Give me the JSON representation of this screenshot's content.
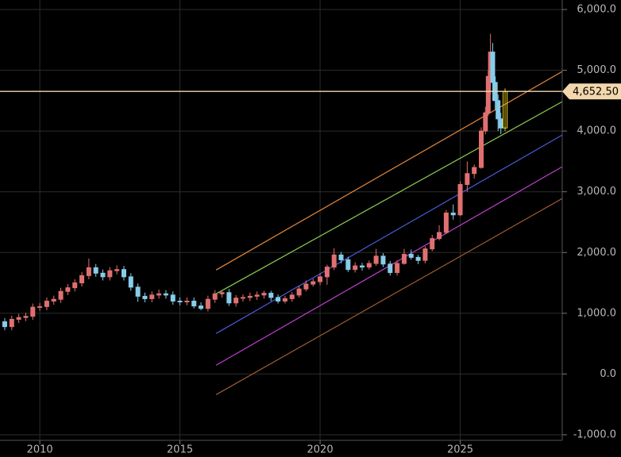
{
  "chart_data": {
    "type": "candlestick",
    "x": [
      2008.75,
      2009,
      2009.25,
      2009.5,
      2009.75,
      2010,
      2010.25,
      2010.5,
      2010.75,
      2011,
      2011.25,
      2011.5,
      2011.75,
      2012,
      2012.25,
      2012.5,
      2012.75,
      2013,
      2013.25,
      2013.5,
      2013.75,
      2014,
      2014.25,
      2014.5,
      2014.75,
      2015,
      2015.25,
      2015.5,
      2015.75,
      2016,
      2016.25,
      2016.5,
      2016.75,
      2017,
      2017.25,
      2017.5,
      2017.75,
      2018,
      2018.25,
      2018.5,
      2018.75,
      2019,
      2019.25,
      2019.5,
      2019.75,
      2020,
      2020.25,
      2020.5,
      2020.75,
      2021,
      2021.25,
      2021.5,
      2021.75,
      2022,
      2022.25,
      2022.5,
      2022.75,
      2023,
      2023.25,
      2023.5,
      2023.75,
      2024,
      2024.25,
      2024.5,
      2024.75,
      2025,
      2025.25,
      2025.5,
      2025.75,
      2025.9,
      2026,
      2026.08,
      2026.16,
      2026.25,
      2026.35,
      2026.45,
      2026.6
    ],
    "open": [
      860,
      780,
      900,
      930,
      950,
      1100,
      1110,
      1200,
      1230,
      1360,
      1420,
      1500,
      1620,
      1750,
      1660,
      1600,
      1700,
      1720,
      1600,
      1430,
      1280,
      1240,
      1300,
      1320,
      1300,
      1200,
      1190,
      1200,
      1120,
      1080,
      1230,
      1320,
      1340,
      1170,
      1250,
      1260,
      1280,
      1300,
      1330,
      1260,
      1200,
      1240,
      1300,
      1400,
      1480,
      1520,
      1600,
      1760,
      1960,
      1880,
      1720,
      1780,
      1760,
      1820,
      1940,
      1810,
      1670,
      1820,
      1970,
      1920,
      1870,
      2060,
      2230,
      2330,
      2650,
      2620,
      3120,
      3300,
      3400,
      4000,
      4300,
      4900,
      5300,
      4800,
      4500,
      4200,
      4050
    ],
    "high": [
      920,
      960,
      990,
      1010,
      1160,
      1170,
      1260,
      1290,
      1420,
      1480,
      1560,
      1680,
      1900,
      1810,
      1720,
      1760,
      1790,
      1780,
      1660,
      1490,
      1340,
      1360,
      1390,
      1380,
      1360,
      1260,
      1260,
      1260,
      1180,
      1290,
      1380,
      1380,
      1400,
      1300,
      1310,
      1340,
      1360,
      1370,
      1370,
      1310,
      1290,
      1350,
      1450,
      1540,
      1570,
      1660,
      1800,
      2070,
      2010,
      1930,
      1840,
      1830,
      1870,
      2060,
      1990,
      1860,
      1870,
      2060,
      2050,
      1960,
      2100,
      2290,
      2450,
      2700,
      2790,
      3170,
      3500,
      3450,
      4060,
      4400,
      5000,
      5600,
      5450,
      4900,
      4600,
      4300,
      4700
    ],
    "low": [
      720,
      720,
      840,
      870,
      890,
      1040,
      1050,
      1140,
      1170,
      1300,
      1360,
      1440,
      1560,
      1600,
      1540,
      1540,
      1640,
      1540,
      1370,
      1190,
      1180,
      1180,
      1240,
      1240,
      1140,
      1130,
      1130,
      1080,
      1050,
      1030,
      1170,
      1260,
      1120,
      1110,
      1190,
      1200,
      1220,
      1240,
      1200,
      1160,
      1160,
      1190,
      1260,
      1360,
      1440,
      1460,
      1470,
      1710,
      1820,
      1680,
      1670,
      1700,
      1720,
      1780,
      1760,
      1620,
      1620,
      1800,
      1880,
      1810,
      1820,
      2020,
      2200,
      2300,
      2540,
      2600,
      3000,
      3220,
      3380,
      3950,
      4250,
      4600,
      4500,
      4350,
      4000,
      3950,
      4000
    ],
    "close": [
      780,
      900,
      930,
      950,
      1100,
      1110,
      1200,
      1230,
      1360,
      1420,
      1500,
      1620,
      1750,
      1660,
      1600,
      1700,
      1720,
      1600,
      1430,
      1280,
      1240,
      1300,
      1320,
      1300,
      1200,
      1190,
      1200,
      1120,
      1080,
      1230,
      1320,
      1340,
      1170,
      1250,
      1260,
      1280,
      1300,
      1330,
      1260,
      1200,
      1240,
      1300,
      1400,
      1480,
      1520,
      1600,
      1760,
      1960,
      1880,
      1720,
      1780,
      1760,
      1820,
      1940,
      1810,
      1670,
      1820,
      1970,
      1920,
      1870,
      2060,
      2230,
      2330,
      2650,
      2620,
      3120,
      3300,
      3400,
      4000,
      4300,
      4900,
      5300,
      4800,
      4500,
      4200,
      4050,
      4650
    ],
    "up_color": "#e07070",
    "down_color": "#87cdea",
    "last_color": "#f0d020",
    "xlim": [
      2008.58,
      2028.64
    ],
    "ylim": [
      -1092,
      6157
    ],
    "xticks": [
      2010,
      2015,
      2020,
      2025
    ],
    "yticks": [
      {
        "value": 6000,
        "label": "6,000.0"
      },
      {
        "value": 5000,
        "label": "5,000.0"
      },
      {
        "value": 4000,
        "label": "4,000.0"
      },
      {
        "value": 3000,
        "label": "3,000.0"
      },
      {
        "value": 2000,
        "label": "2,000.0"
      },
      {
        "value": 1000,
        "label": "1,000.0"
      },
      {
        "value": 0,
        "label": "0.0"
      },
      {
        "value": -1000,
        "label": "-1,000.0"
      }
    ],
    "grid": true,
    "channels": [
      {
        "color": "#e8883a",
        "x": [
          2016.29,
          2028.64
        ],
        "values": [
          1712,
          4980
        ]
      },
      {
        "color": "#8ccf50",
        "x": [
          2016.29,
          2028.64
        ],
        "values": [
          1320,
          4484
        ]
      },
      {
        "color": "#4a5ad8",
        "x": [
          2016.29,
          2028.64
        ],
        "values": [
          667,
          3935
        ]
      },
      {
        "color": "#c040d0",
        "x": [
          2016.29,
          2028.64
        ],
        "values": [
          144,
          3412
        ]
      },
      {
        "color": "#a05a30",
        "x": [
          2016.29,
          2028.64
        ],
        "values": [
          -340,
          2889
        ]
      }
    ],
    "hline": {
      "value": 4652.5,
      "label": "4,652.50",
      "color": "#f3d7ad"
    }
  }
}
